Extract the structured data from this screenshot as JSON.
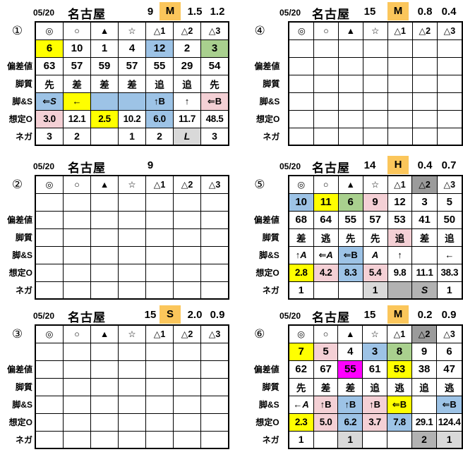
{
  "colors": {
    "orange": "#FBC65B",
    "yellow": "#FFFF00",
    "blue": "#9DC3E6",
    "green": "#A9D08E",
    "pink": "#F4D0D5",
    "grayLight": "#D9D9D9",
    "grayMid": "#B2B2B2",
    "grayDark": "#9B9B9B",
    "magenta": "#FF00FF"
  },
  "row_labels": [
    "偏差値",
    "脚質",
    "脚&S",
    "想定O",
    "ネガ"
  ],
  "tables": [
    {
      "badge": "①",
      "header": {
        "date": "05/20",
        "venue": "名古屋",
        "race": "9",
        "mark": "M",
        "v1": "1.5",
        "v2": "1.2"
      },
      "grid": [
        [
          "◎",
          "○",
          "▲",
          "☆",
          "△1",
          "△2",
          "△3"
        ],
        [
          {
            "t": "6",
            "bg": "yellow"
          },
          "10",
          "1",
          "4",
          {
            "t": "12",
            "bg": "blue"
          },
          "2",
          {
            "t": "3",
            "bg": "green"
          }
        ],
        [
          "63",
          "57",
          "59",
          "57",
          "55",
          "29",
          "54"
        ],
        [
          "先",
          "差",
          "差",
          "差",
          "追",
          "追",
          "先"
        ],
        [
          {
            "t": "⇐S",
            "bg": "blue",
            "it": true
          },
          {
            "t": "←",
            "bg": "yellow"
          },
          {
            "t": "",
            "bg": "blue"
          },
          {
            "t": "",
            "bg": "blue"
          },
          {
            "t": "↑B",
            "bg": "blue"
          },
          "↑",
          {
            "t": "⇐B",
            "bg": "pink"
          }
        ],
        [
          {
            "t": "3.0",
            "bg": "pink"
          },
          "12.1",
          {
            "t": "2.5",
            "bg": "yellow"
          },
          "10.2",
          {
            "t": "6.0",
            "bg": "blue"
          },
          "11.7",
          "48.5"
        ],
        [
          "3",
          "2",
          "",
          "1",
          "2",
          {
            "t": "L",
            "bg": "grayLight",
            "it": true
          },
          "3"
        ]
      ]
    },
    {
      "badge": "②",
      "header": {
        "date": "05/20",
        "venue": "名古屋",
        "race": "9",
        "mark": "",
        "v1": "",
        "v2": ""
      },
      "grid": [
        [
          "◎",
          "○",
          "▲",
          "☆",
          "△1",
          "△2",
          "△3"
        ],
        [
          "",
          "",
          "",
          "",
          "",
          "",
          ""
        ],
        [
          "",
          "",
          "",
          "",
          "",
          "",
          ""
        ],
        [
          "",
          "",
          "",
          "",
          "",
          "",
          ""
        ],
        [
          "",
          "",
          "",
          "",
          "",
          "",
          ""
        ],
        [
          "",
          "",
          "",
          "",
          "",
          "",
          ""
        ],
        [
          "",
          "",
          "",
          "",
          "",
          "",
          ""
        ]
      ]
    },
    {
      "badge": "③",
      "header": {
        "date": "05/20",
        "venue": "名古屋",
        "race": "15",
        "mark": "S",
        "v1": "2.0",
        "v2": "0.9"
      },
      "grid": [
        [
          "◎",
          "○",
          "▲",
          "☆",
          "△1",
          "△2",
          "△3"
        ],
        [
          "",
          "",
          "",
          "",
          "",
          "",
          ""
        ],
        [
          "",
          "",
          "",
          "",
          "",
          "",
          ""
        ],
        [
          "",
          "",
          "",
          "",
          "",
          "",
          ""
        ],
        [
          "",
          "",
          "",
          "",
          "",
          "",
          ""
        ],
        [
          "",
          "",
          "",
          "",
          "",
          "",
          ""
        ],
        [
          "",
          "",
          "",
          "",
          "",
          "",
          ""
        ]
      ]
    },
    {
      "badge": "④",
      "header": {
        "date": "05/20",
        "venue": "名古屋",
        "race": "15",
        "mark": "M",
        "v1": "0.8",
        "v2": "0.4"
      },
      "grid": [
        [
          "◎",
          "○",
          "▲",
          "☆",
          "△1",
          "△2",
          "△3"
        ],
        [
          "",
          "",
          "",
          "",
          "",
          "",
          ""
        ],
        [
          "",
          "",
          "",
          "",
          "",
          "",
          ""
        ],
        [
          "",
          "",
          "",
          "",
          "",
          "",
          ""
        ],
        [
          "",
          "",
          "",
          "",
          "",
          "",
          ""
        ],
        [
          "",
          "",
          "",
          "",
          "",
          "",
          ""
        ],
        [
          "",
          "",
          "",
          "",
          "",
          "",
          ""
        ]
      ]
    },
    {
      "badge": "⑤",
      "header": {
        "date": "05/20",
        "venue": "名古屋",
        "race": "14",
        "mark": "H",
        "v1": "0.4",
        "v2": "0.7"
      },
      "grid": [
        [
          "◎",
          "○",
          "▲",
          "☆",
          "△1",
          {
            "t": "△2",
            "bg": "grayDark"
          },
          "△3"
        ],
        [
          {
            "t": "10",
            "bg": "blue"
          },
          {
            "t": "11",
            "bg": "yellow"
          },
          {
            "t": "6",
            "bg": "green"
          },
          {
            "t": "9",
            "bg": "pink"
          },
          "12",
          "3",
          "5"
        ],
        [
          "68",
          "64",
          "55",
          "57",
          "53",
          "41",
          "50"
        ],
        [
          "差",
          "逃",
          "先",
          "先",
          {
            "t": "追",
            "bg": "pink"
          },
          "差",
          "追"
        ],
        [
          {
            "t": "↑A",
            "it": true
          },
          {
            "t": "⇐A",
            "it": true
          },
          {
            "t": "⇐B",
            "bg": "blue"
          },
          {
            "t": "A",
            "it": true
          },
          "↑",
          "",
          "←"
        ],
        [
          {
            "t": "2.8",
            "bg": "yellow"
          },
          {
            "t": "4.2",
            "bg": "pink"
          },
          {
            "t": "8.3",
            "bg": "blue"
          },
          {
            "t": "5.4",
            "bg": "pink"
          },
          "9.8",
          "11.1",
          "38.3"
        ],
        [
          "1",
          "",
          "",
          {
            "t": "1",
            "bg": "grayLight"
          },
          {
            "t": "",
            "bg": "grayMid"
          },
          {
            "t": "S",
            "bg": "grayMid",
            "it": true
          },
          "1"
        ]
      ]
    },
    {
      "badge": "⑥",
      "header": {
        "date": "05/20",
        "venue": "名古屋",
        "race": "15",
        "mark": "M",
        "v1": "0.2",
        "v2": "0.9"
      },
      "grid": [
        [
          "◎",
          "○",
          "▲",
          "☆",
          "△1",
          {
            "t": "△2",
            "bg": "grayDark"
          },
          "△3"
        ],
        [
          {
            "t": "7",
            "bg": "yellow"
          },
          {
            "t": "5",
            "bg": "pink"
          },
          "4",
          {
            "t": "3",
            "bg": "blue"
          },
          {
            "t": "8",
            "bg": "green"
          },
          "9",
          "6"
        ],
        [
          "62",
          "67",
          {
            "t": "55",
            "bg": "magenta"
          },
          "61",
          {
            "t": "53",
            "bg": "yellow"
          },
          "38",
          "47"
        ],
        [
          "先",
          "差",
          "差",
          "追",
          "逃",
          "追",
          "逃"
        ],
        [
          {
            "t": "←A",
            "it": true
          },
          {
            "t": "↑B",
            "bg": "pink"
          },
          {
            "t": "↑B",
            "bg": "blue"
          },
          {
            "t": "↑B",
            "bg": "pink"
          },
          {
            "t": "⇐B",
            "bg": "yellow"
          },
          "",
          {
            "t": "⇐B",
            "bg": "blue"
          }
        ],
        [
          {
            "t": "2.3",
            "bg": "yellow"
          },
          {
            "t": "5.0",
            "bg": "pink"
          },
          {
            "t": "6.2",
            "bg": "blue"
          },
          {
            "t": "3.7",
            "bg": "pink"
          },
          {
            "t": "7.8",
            "bg": "blue"
          },
          "29.1",
          "124.4"
        ],
        [
          "1",
          "",
          {
            "t": "1",
            "bg": "grayLight"
          },
          "",
          "",
          {
            "t": "2",
            "bg": "grayMid"
          },
          {
            "t": "1",
            "bg": "grayLight"
          }
        ]
      ]
    }
  ]
}
